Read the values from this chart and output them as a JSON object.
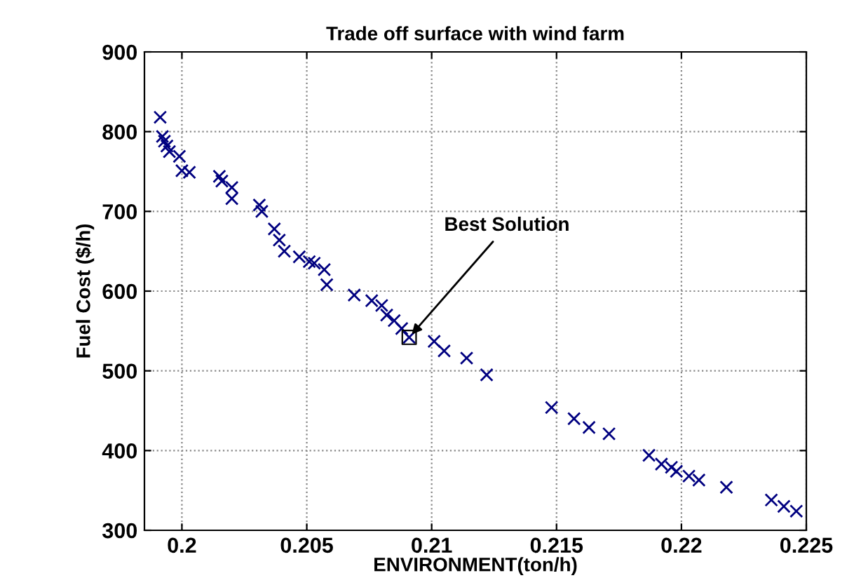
{
  "chart_data": {
    "type": "scatter",
    "title": "Trade off surface with wind farm",
    "xlabel": "ENVIRONMENT(ton/h)",
    "ylabel": "Fuel Cost ($/h)",
    "series": [
      {
        "color": "#000080",
        "marker": "cross",
        "x": [
          0.19913,
          0.19922,
          0.1993,
          0.1994,
          0.1995,
          0.1999,
          0.2,
          0.2003,
          0.2015,
          0.2016,
          0.202,
          0.202,
          0.2031,
          0.2032,
          0.2037,
          0.2039,
          0.2041,
          0.2047,
          0.2051,
          0.2053,
          0.2057,
          0.2058,
          0.2069,
          0.2076,
          0.208,
          0.2082,
          0.2085,
          0.2088,
          0.2091,
          0.2101,
          0.2105,
          0.2114,
          0.2122,
          0.2148,
          0.2157,
          0.2163,
          0.2171,
          0.2187,
          0.2192,
          0.2196,
          0.2198,
          0.2203,
          0.2207,
          0.2218,
          0.2236,
          0.2241,
          0.2246
        ],
        "values": [
          818,
          794,
          788,
          782,
          775,
          769,
          751,
          749,
          744,
          738,
          730,
          716,
          708,
          700,
          678,
          664,
          650,
          643,
          637,
          635,
          627,
          608,
          595,
          588,
          582,
          570,
          563,
          553,
          542,
          537,
          525,
          516,
          495,
          454,
          440,
          429,
          421,
          394,
          383,
          379,
          374,
          368,
          363,
          354,
          338,
          330,
          324
        ]
      },
      {
        "color": "#000000",
        "marker": "square",
        "x": [
          0.2091
        ],
        "values": [
          542
        ]
      }
    ],
    "annotations": [
      {
        "text": "Best Solution",
        "x": 0.2091,
        "y": 542
      }
    ],
    "xlim": [
      0.1985,
      0.225
    ],
    "ylim": [
      300,
      900
    ],
    "xticks": [
      {
        "value": 0.2,
        "label": "0.2"
      },
      0.205,
      0.21,
      0.215,
      0.22,
      0.225
    ],
    "yticks": [
      300,
      400,
      500,
      600,
      700,
      800,
      900
    ],
    "grid": true
  }
}
